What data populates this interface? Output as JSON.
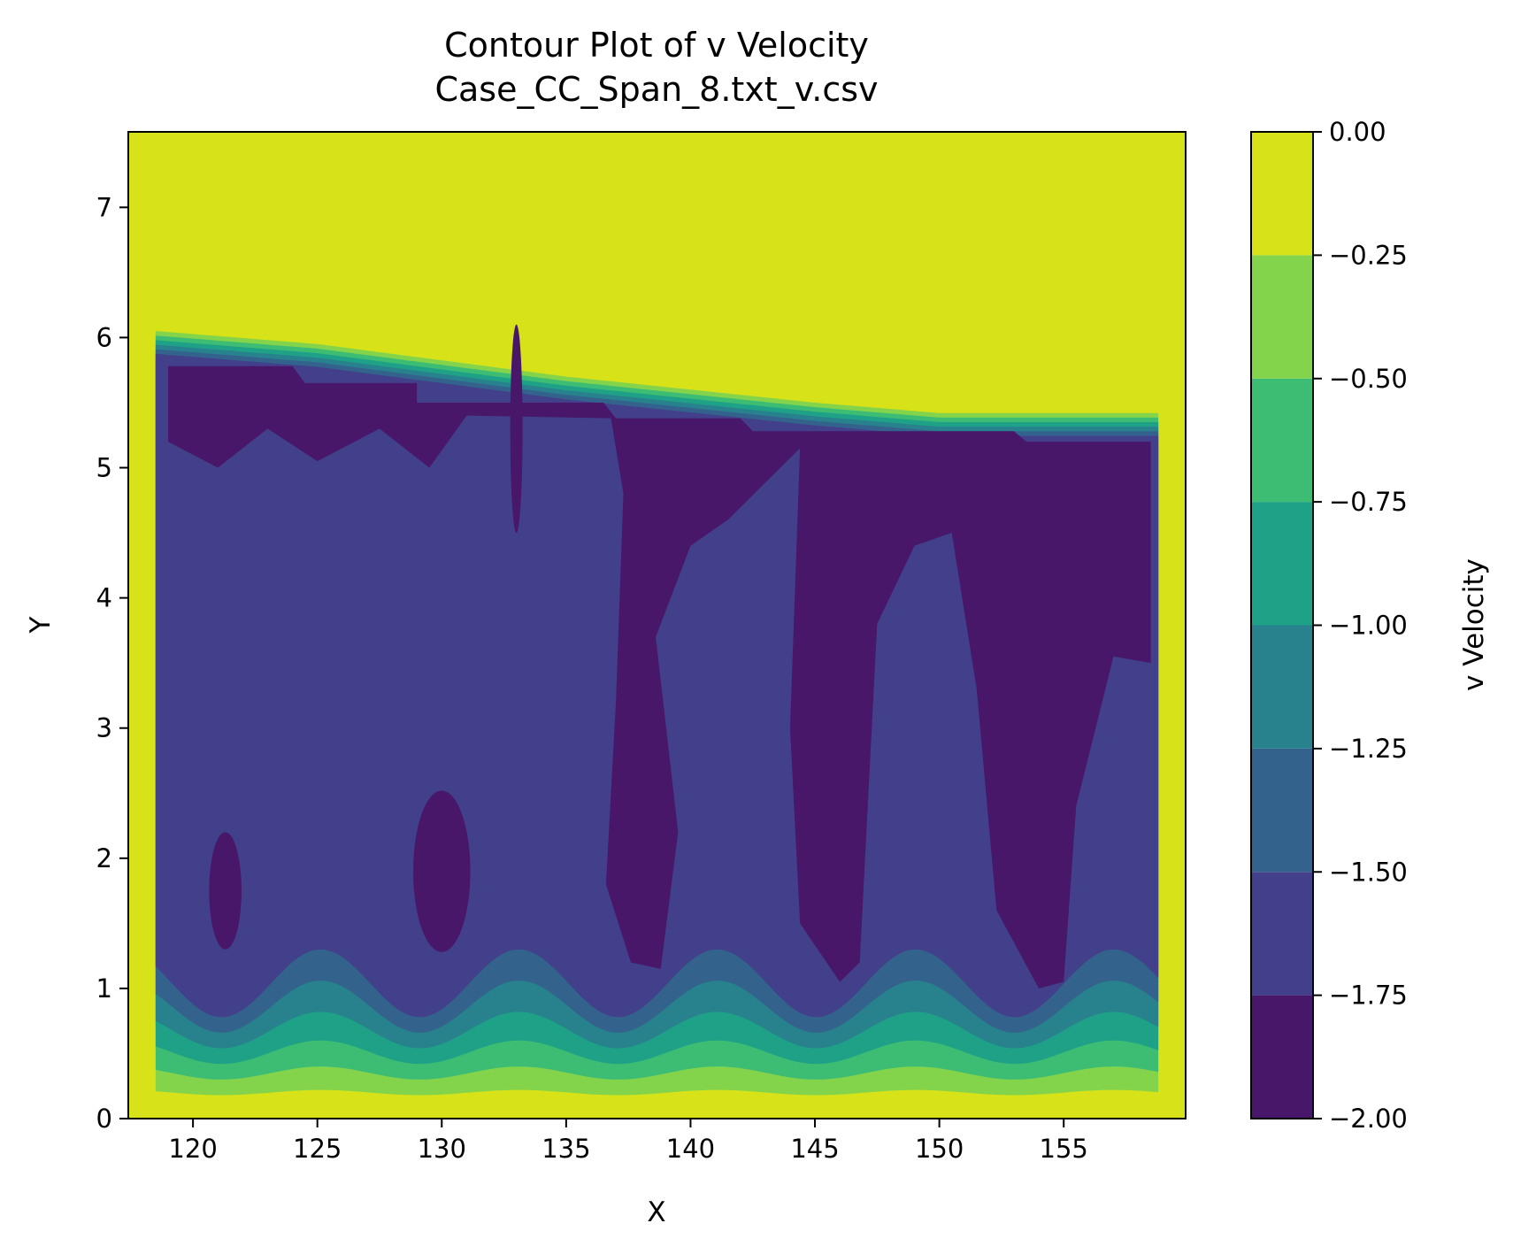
{
  "chart_data": {
    "type": "contour",
    "title": "Contour Plot of v Velocity",
    "subtitle": "Case_CC_Span_8.txt_v.csv",
    "xlabel": "X",
    "ylabel": "Y",
    "xlim": [
      117.4,
      159.9
    ],
    "ylim": [
      0,
      7.58
    ],
    "xticks": [
      120,
      125,
      130,
      135,
      140,
      145,
      150,
      155
    ],
    "yticks": [
      0,
      1,
      2,
      3,
      4,
      5,
      6,
      7
    ],
    "colorbar": {
      "label": "v Velocity",
      "range": [
        -2.0,
        0.0
      ],
      "ticks": [
        "0.00",
        "−0.25",
        "−0.50",
        "−0.75",
        "−1.00",
        "−1.25",
        "−1.50",
        "−1.75",
        "−2.00"
      ],
      "levels": [
        {
          "range": [
            -2.0,
            -1.75
          ],
          "color": "#481769"
        },
        {
          "range": [
            -1.75,
            -1.5
          ],
          "color": "#42408a"
        },
        {
          "range": [
            -1.5,
            -1.25
          ],
          "color": "#33638d"
        },
        {
          "range": [
            -1.25,
            -1.0
          ],
          "color": "#28828e"
        },
        {
          "range": [
            -1.0,
            -0.75
          ],
          "color": "#1fa187"
        },
        {
          "range": [
            -0.75,
            -0.5
          ],
          "color": "#3dbc74"
        },
        {
          "range": [
            -0.5,
            -0.25
          ],
          "color": "#84d44b"
        },
        {
          "range": [
            -0.25,
            0.0
          ],
          "color": "#d8e219"
        }
      ]
    },
    "domain_x": [
      118.5,
      158.8
    ],
    "domain_top_y": [
      [
        118.5,
        6.05
      ],
      [
        125,
        5.95
      ],
      [
        135,
        5.7
      ],
      [
        145,
        5.5
      ],
      [
        150,
        5.42
      ],
      [
        158.8,
        5.42
      ]
    ]
  }
}
